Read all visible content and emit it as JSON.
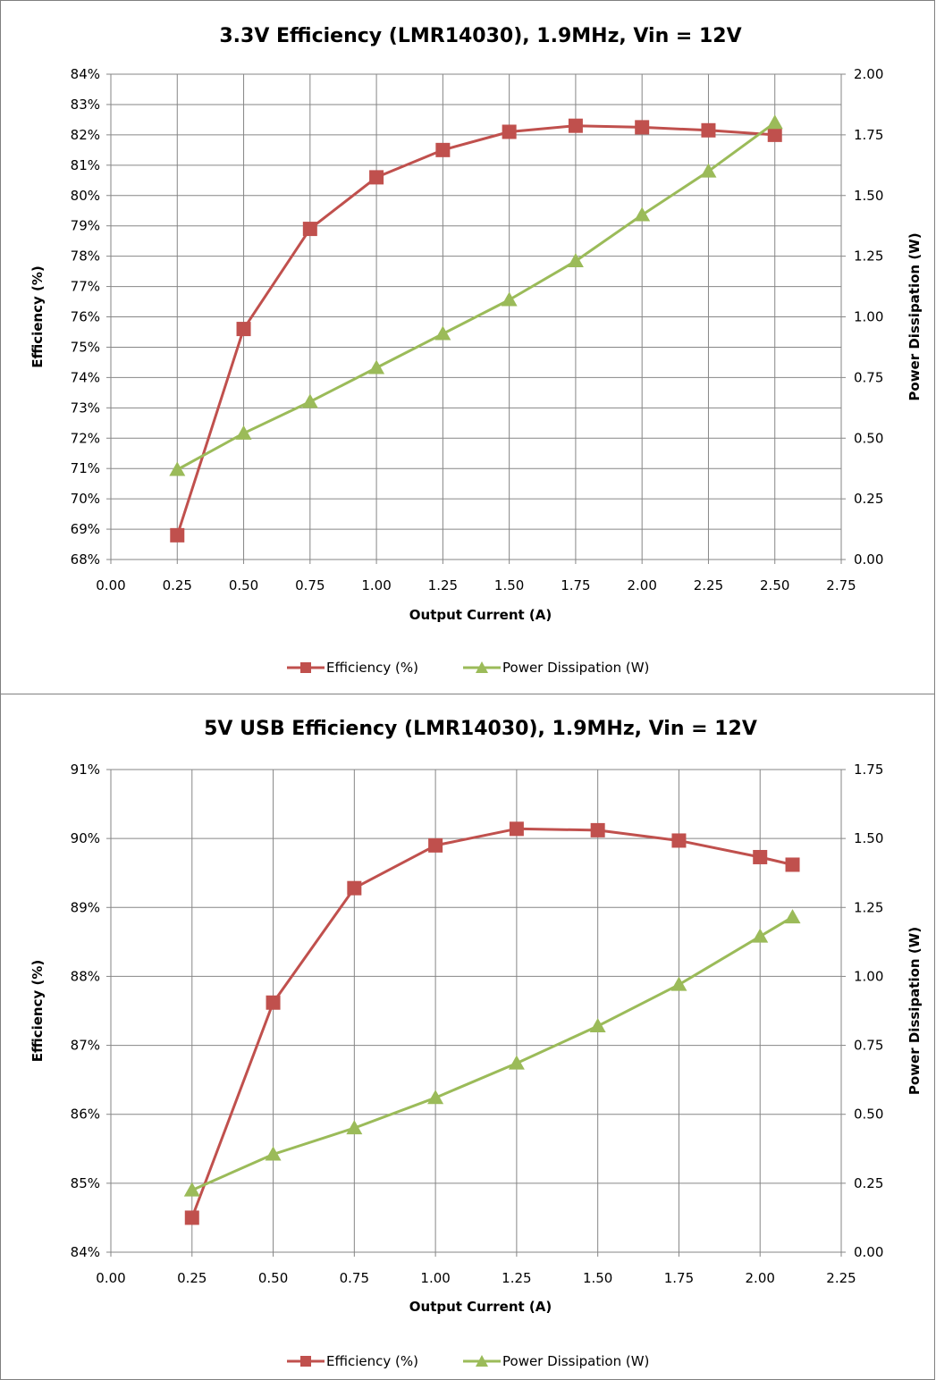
{
  "chart_data": [
    {
      "type": "line",
      "title": "3.3V Efficiency (LMR14030), 1.9MHz, Vin = 12V",
      "xlabel": "Output Current (A)",
      "ylabel": "Efficiency (%)",
      "y2label": "Power Dissipation (W)",
      "xlim": [
        0,
        2.75
      ],
      "ylim": [
        68,
        84
      ],
      "y2lim": [
        0,
        2.0
      ],
      "xticks": [
        "0.00",
        "0.25",
        "0.50",
        "0.75",
        "1.00",
        "1.25",
        "1.50",
        "1.75",
        "2.00",
        "2.25",
        "2.50",
        "2.75"
      ],
      "yticks": [
        "68%",
        "69%",
        "70%",
        "71%",
        "72%",
        "73%",
        "74%",
        "75%",
        "76%",
        "77%",
        "78%",
        "79%",
        "80%",
        "81%",
        "82%",
        "83%",
        "84%"
      ],
      "y2ticks": [
        "0.00",
        "0.25",
        "0.50",
        "0.75",
        "1.00",
        "1.25",
        "1.50",
        "1.75",
        "2.00"
      ],
      "grid": true,
      "legend_position": "bottom",
      "series": [
        {
          "name": "Efficiency (%)",
          "axis": "left",
          "color": "#c0504d",
          "marker": "square",
          "x": [
            0.25,
            0.5,
            0.75,
            1.0,
            1.25,
            1.5,
            1.75,
            2.0,
            2.25,
            2.5
          ],
          "y": [
            68.8,
            75.6,
            78.9,
            80.6,
            81.5,
            82.1,
            82.3,
            82.25,
            82.15,
            82.0
          ]
        },
        {
          "name": "Power Dissipation (W)",
          "axis": "right",
          "color": "#9bbb59",
          "marker": "triangle",
          "x": [
            0.25,
            0.5,
            0.75,
            1.0,
            1.25,
            1.5,
            1.75,
            2.0,
            2.25,
            2.5
          ],
          "y": [
            0.37,
            0.52,
            0.65,
            0.79,
            0.93,
            1.07,
            1.23,
            1.42,
            1.6,
            1.8
          ]
        }
      ]
    },
    {
      "type": "line",
      "title": "5V USB Efficiency (LMR14030), 1.9MHz, Vin = 12V",
      "xlabel": "Output Current (A)",
      "ylabel": "Efficiency (%)",
      "y2label": "Power Dissipation (W)",
      "xlim": [
        0,
        2.25
      ],
      "ylim": [
        84,
        91
      ],
      "y2lim": [
        0,
        1.75
      ],
      "xticks": [
        "0.00",
        "0.25",
        "0.50",
        "0.75",
        "1.00",
        "1.25",
        "1.50",
        "1.75",
        "2.00",
        "2.25"
      ],
      "yticks": [
        "84%",
        "85%",
        "86%",
        "87%",
        "88%",
        "89%",
        "90%",
        "91%"
      ],
      "y2ticks": [
        "0.00",
        "0.25",
        "0.50",
        "0.75",
        "1.00",
        "1.25",
        "1.50",
        "1.75"
      ],
      "grid": true,
      "legend_position": "bottom",
      "series": [
        {
          "name": "Efficiency (%)",
          "axis": "left",
          "color": "#c0504d",
          "marker": "square",
          "x": [
            0.25,
            0.5,
            0.75,
            1.0,
            1.25,
            1.5,
            1.75,
            2.0,
            2.1
          ],
          "y": [
            84.5,
            87.62,
            89.28,
            89.9,
            90.14,
            90.12,
            89.97,
            89.73,
            89.62
          ]
        },
        {
          "name": "Power Dissipation (W)",
          "axis": "right",
          "color": "#9bbb59",
          "marker": "triangle",
          "x": [
            0.25,
            0.5,
            0.75,
            1.0,
            1.25,
            1.5,
            1.75,
            2.0,
            2.1
          ],
          "y": [
            0.225,
            0.355,
            0.45,
            0.56,
            0.685,
            0.82,
            0.97,
            1.145,
            1.215
          ]
        }
      ]
    }
  ]
}
